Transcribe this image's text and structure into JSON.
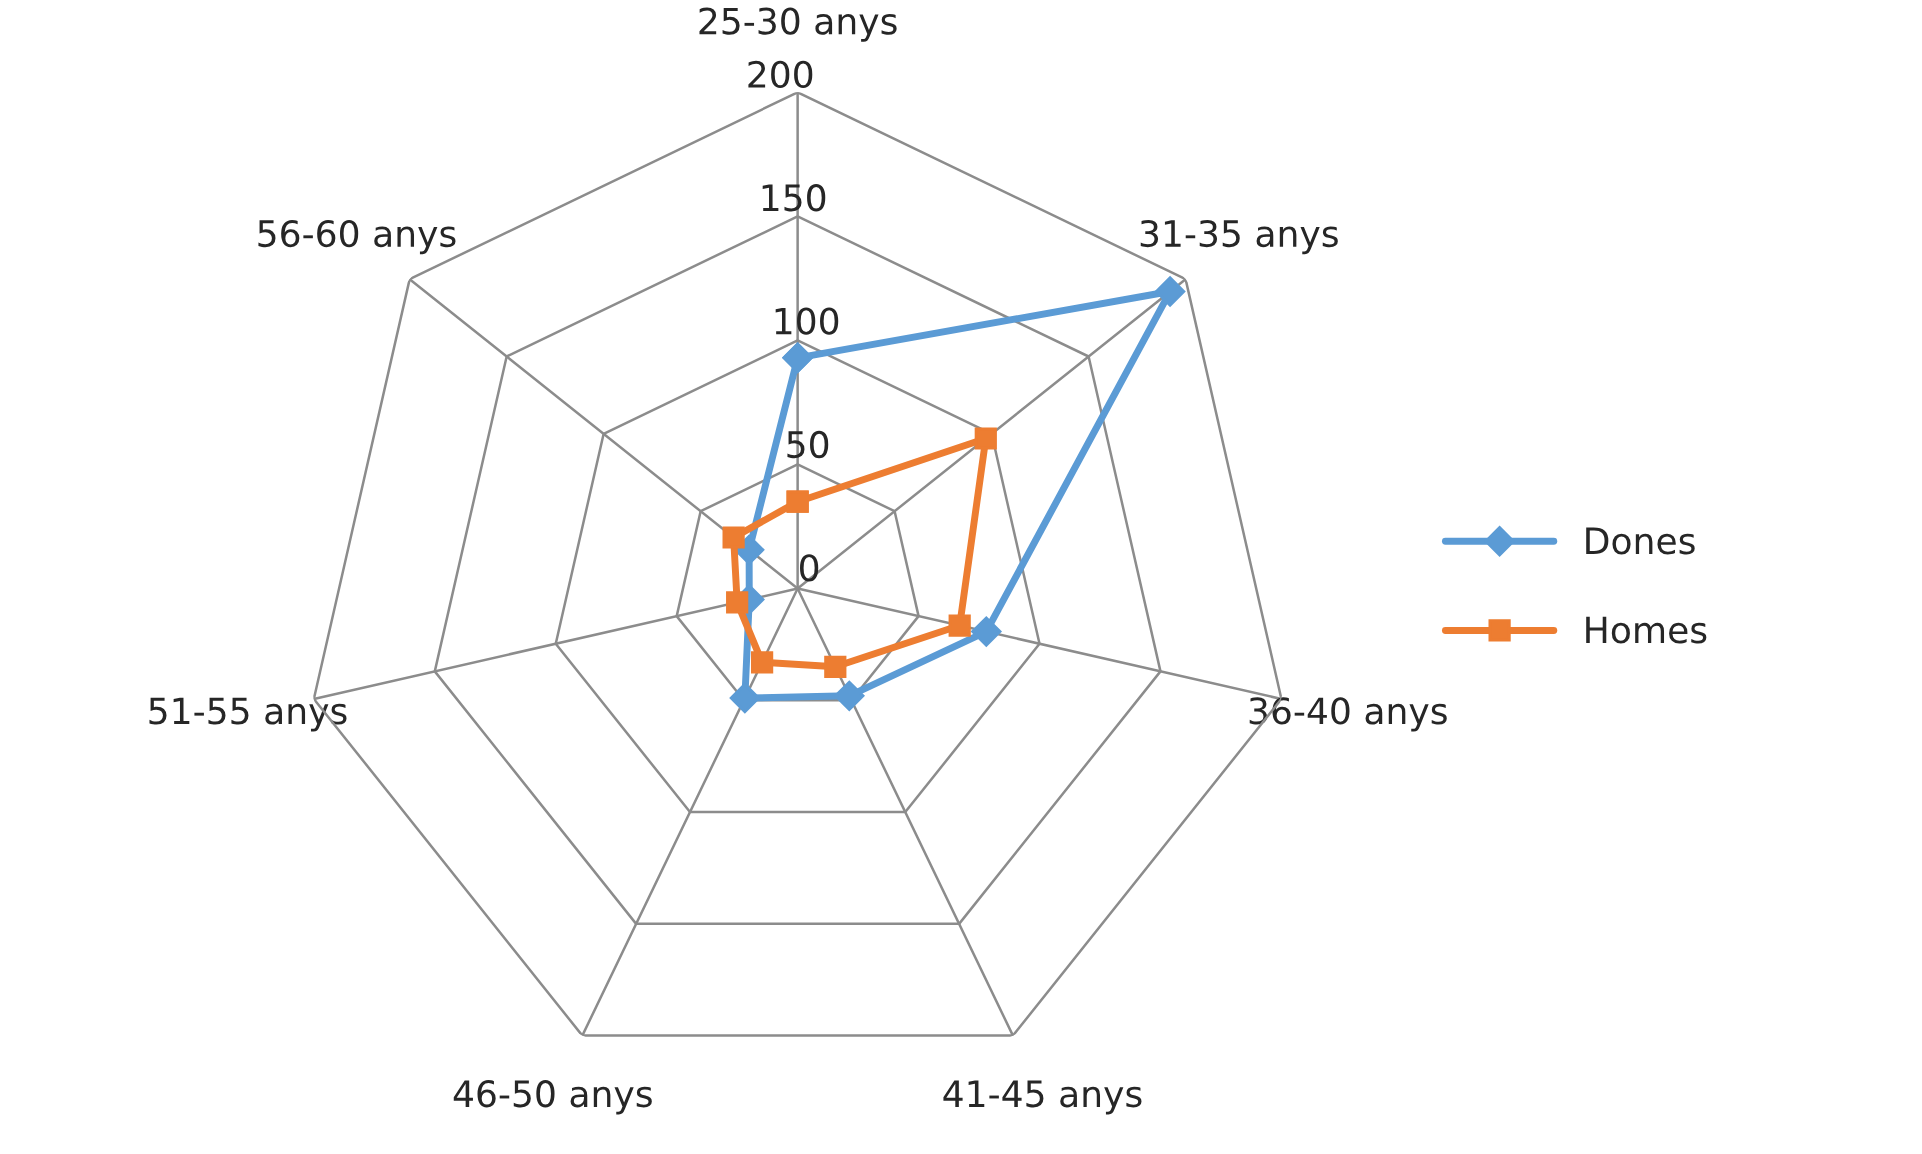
{
  "chart_data": {
    "type": "radar",
    "categories": [
      "25-30 anys",
      "31-35 anys",
      "36-40 anys",
      "41-45 anys",
      "46-50 anys",
      "51-55 anys",
      "56-60 anys"
    ],
    "series": [
      {
        "name": "Dones",
        "color": "#5b9bd5",
        "marker": "diamond",
        "values": [
          93,
          192,
          78,
          48,
          49,
          20,
          25
        ]
      },
      {
        "name": "Homes",
        "color": "#ed7d31",
        "marker": "square",
        "values": [
          35,
          97,
          67,
          35,
          33,
          25,
          33
        ]
      }
    ],
    "ylim": [
      0,
      200
    ],
    "yticks": [
      0,
      50,
      100,
      150,
      200
    ],
    "grid": true,
    "legend": "right"
  }
}
